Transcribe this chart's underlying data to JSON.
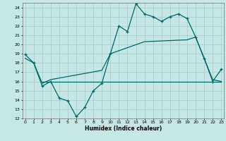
{
  "xlabel": "Humidex (Indice chaleur)",
  "background_color": "#c5e8e5",
  "grid_color": "#a8d0cc",
  "line_color": "#006868",
  "xlim": [
    -0.3,
    23.3
  ],
  "ylim": [
    12,
    24.5
  ],
  "yticks": [
    12,
    13,
    14,
    15,
    16,
    17,
    18,
    19,
    20,
    21,
    22,
    23,
    24
  ],
  "xticks": [
    0,
    1,
    2,
    3,
    4,
    5,
    6,
    7,
    8,
    9,
    10,
    11,
    12,
    13,
    14,
    15,
    16,
    17,
    18,
    19,
    20,
    21,
    22,
    23
  ],
  "line1_x": [
    0,
    1,
    2,
    3,
    4,
    5,
    6,
    7,
    8,
    9,
    10,
    11,
    12,
    13,
    14,
    15,
    16,
    17,
    18,
    19,
    20,
    21,
    22,
    23
  ],
  "line1_y": [
    18.9,
    18.0,
    15.5,
    16.0,
    14.2,
    13.9,
    12.2,
    13.2,
    15.0,
    15.8,
    19.0,
    22.0,
    21.4,
    24.4,
    23.3,
    23.0,
    22.5,
    23.0,
    23.3,
    22.8,
    20.8,
    18.5,
    16.0,
    17.3
  ],
  "line2_x": [
    2,
    3,
    4,
    5,
    6,
    7,
    8,
    9,
    10,
    11,
    12,
    13,
    14,
    15,
    16,
    17,
    18,
    19,
    20,
    21,
    22,
    23
  ],
  "line2_y": [
    16.0,
    16.0,
    16.0,
    16.0,
    16.0,
    16.0,
    16.0,
    16.0,
    16.0,
    16.0,
    16.0,
    16.0,
    16.0,
    16.0,
    16.0,
    16.0,
    16.0,
    16.0,
    16.0,
    16.0,
    16.0,
    16.0
  ],
  "line3_x": [
    0,
    1,
    2,
    3,
    9,
    10,
    14,
    19,
    20,
    21,
    22,
    23
  ],
  "line3_y": [
    18.5,
    18.0,
    15.8,
    16.2,
    17.2,
    19.0,
    20.3,
    20.5,
    20.8,
    18.5,
    16.2,
    16.0
  ]
}
